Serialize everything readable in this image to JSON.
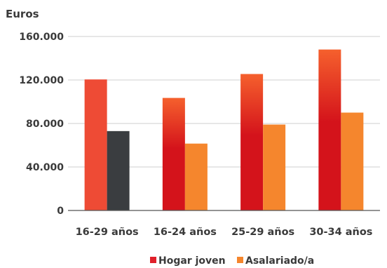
{
  "chart_data": {
    "type": "bar",
    "title": "",
    "ylabel": "Euros",
    "xlabel": "",
    "ylim": [
      0,
      160000
    ],
    "yticks": [
      0,
      40000,
      80000,
      120000,
      160000
    ],
    "ytick_labels": [
      "0",
      "40.000",
      "80.000",
      "120.000",
      "160.000"
    ],
    "grid": true,
    "legend_position": "bottom",
    "categories": [
      "16-29 años",
      "16-24 años",
      "25-29 años",
      "30-34 años"
    ],
    "series": [
      {
        "name": "Hogar joven",
        "values": [
          120500,
          103500,
          125500,
          148000
        ]
      },
      {
        "name": "Asalariado/a",
        "values": [
          73000,
          61500,
          79000,
          90000
        ]
      }
    ],
    "highlight": {
      "category_index": 0,
      "colors": [
        "#ee4b35",
        "#3a3d40"
      ]
    },
    "colors": {
      "hogar_top": "#f5602d",
      "hogar_bottom": "#d4131b",
      "asalariado": "#f5862d",
      "legend_hogar": "#e0202a",
      "legend_asal": "#f5862d",
      "grid": "#cfcfcf",
      "axis": "#555555"
    }
  }
}
